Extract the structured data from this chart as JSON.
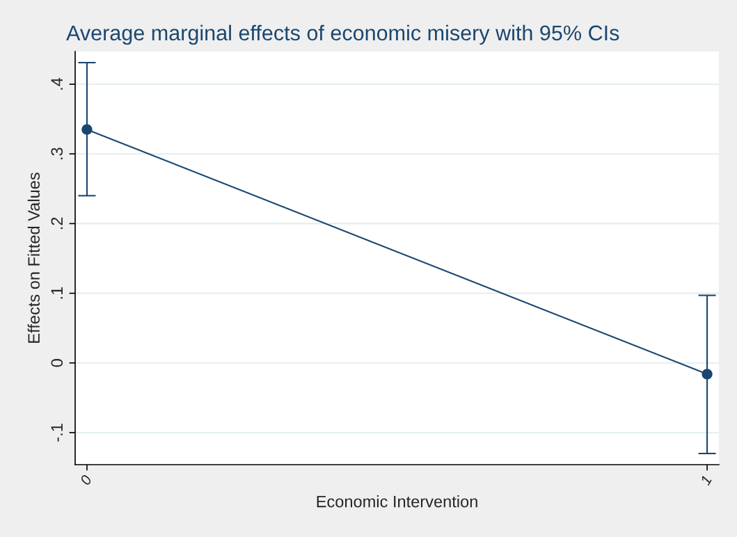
{
  "chart_data": {
    "type": "line",
    "title": "Average marginal effects of economic misery with 95% CIs",
    "xlabel": "Economic Intervention",
    "ylabel": "Effects on Fitted Values",
    "x": [
      0,
      1
    ],
    "series": [
      {
        "color": "#1a476f",
        "values": [
          0.335,
          -0.016
        ],
        "errors": [
          [
            0.24,
            0.431
          ],
          [
            -0.13,
            0.097
          ]
        ]
      }
    ],
    "marker": "circle",
    "xlim": [
      -0.019,
      1.019
    ],
    "xticks": [
      0,
      1
    ],
    "ylim": [
      -0.146,
      0.447
    ],
    "yticks": [
      {
        "value": -0.1,
        "label": "-.1"
      },
      0,
      {
        "value": 0.1,
        "label": ".1"
      },
      {
        "value": 0.2,
        "label": ".2"
      },
      {
        "value": 0.3,
        "label": ".3"
      },
      {
        "value": 0.4,
        "label": ".4"
      }
    ],
    "grid": "y",
    "legend": false
  }
}
